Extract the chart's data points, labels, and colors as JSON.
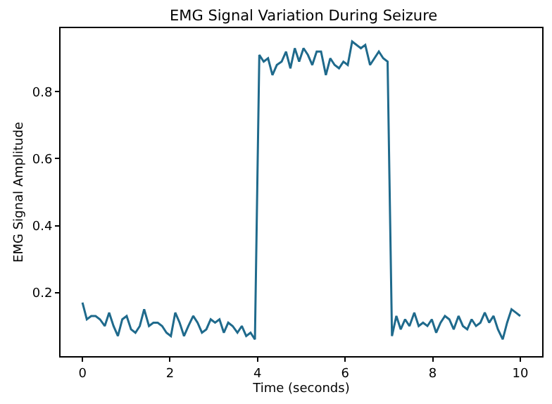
{
  "chart_data": {
    "type": "line",
    "title": "EMG Signal Variation During Seizure",
    "xlabel": "Time (seconds)",
    "ylabel": "EMG Signal Amplitude",
    "x": [
      0,
      0.1,
      0.2,
      0.3,
      0.4,
      0.51,
      0.61,
      0.71,
      0.81,
      0.91,
      1.01,
      1.11,
      1.21,
      1.31,
      1.41,
      1.52,
      1.62,
      1.72,
      1.82,
      1.92,
      2.02,
      2.12,
      2.22,
      2.32,
      2.42,
      2.53,
      2.63,
      2.73,
      2.83,
      2.93,
      3.03,
      3.13,
      3.23,
      3.33,
      3.43,
      3.54,
      3.64,
      3.74,
      3.84,
      3.94,
      4.04,
      4.14,
      4.24,
      4.34,
      4.44,
      4.55,
      4.65,
      4.75,
      4.85,
      4.95,
      5.05,
      5.15,
      5.25,
      5.35,
      5.45,
      5.56,
      5.66,
      5.76,
      5.86,
      5.96,
      6.06,
      6.16,
      6.26,
      6.36,
      6.46,
      6.57,
      6.67,
      6.77,
      6.87,
      6.97,
      7.07,
      7.17,
      7.27,
      7.37,
      7.47,
      7.58,
      7.68,
      7.78,
      7.88,
      7.98,
      8.08,
      8.18,
      8.28,
      8.38,
      8.48,
      8.59,
      8.69,
      8.79,
      8.89,
      8.99,
      9.09,
      9.19,
      9.29,
      9.39,
      9.49,
      9.6,
      9.7,
      9.8,
      9.9,
      10
    ],
    "series": [
      {
        "color": "#1f6a8c",
        "values": [
          0.17,
          0.12,
          0.13,
          0.13,
          0.12,
          0.1,
          0.14,
          0.1,
          0.07,
          0.12,
          0.13,
          0.09,
          0.08,
          0.1,
          0.15,
          0.1,
          0.11,
          0.11,
          0.1,
          0.08,
          0.07,
          0.14,
          0.11,
          0.07,
          0.1,
          0.13,
          0.11,
          0.08,
          0.09,
          0.12,
          0.11,
          0.12,
          0.08,
          0.11,
          0.1,
          0.08,
          0.1,
          0.07,
          0.08,
          0.06,
          0.91,
          0.89,
          0.9,
          0.85,
          0.88,
          0.89,
          0.92,
          0.87,
          0.93,
          0.89,
          0.93,
          0.91,
          0.88,
          0.92,
          0.92,
          0.85,
          0.9,
          0.88,
          0.87,
          0.89,
          0.88,
          0.95,
          0.94,
          0.93,
          0.94,
          0.88,
          0.9,
          0.92,
          0.9,
          0.89,
          0.07,
          0.13,
          0.09,
          0.12,
          0.1,
          0.14,
          0.1,
          0.11,
          0.1,
          0.12,
          0.08,
          0.11,
          0.13,
          0.12,
          0.09,
          0.13,
          0.1,
          0.09,
          0.12,
          0.1,
          0.11,
          0.14,
          0.11,
          0.13,
          0.09,
          0.06,
          0.11,
          0.15,
          0.14,
          0.13
        ]
      }
    ],
    "xlim": [
      -0.5,
      10.5
    ],
    "ylim": [
      0.01,
      0.99
    ],
    "xticks": [
      0,
      2,
      4,
      6,
      8,
      10
    ],
    "yticks": [
      0.2,
      0.4,
      0.6,
      0.8
    ],
    "marker": "none",
    "line_style": "solid"
  }
}
